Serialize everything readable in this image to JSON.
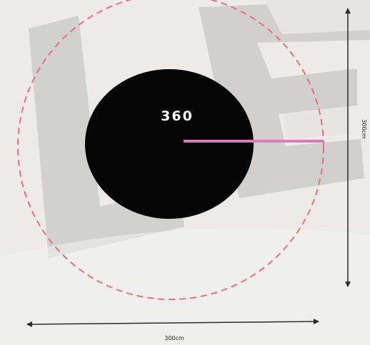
{
  "diagram": {
    "center_label": "360",
    "dimensions": {
      "width": "300cm",
      "height": "300cm"
    },
    "colors": {
      "background": "#ecebe8",
      "watermark": "#cdcccb",
      "circle_fill": "#050505",
      "dashed_circle": "#f06e74",
      "radius_line": "#d77fb4",
      "dimension_arrow": "#2b2b2b",
      "label_text": "#222222"
    }
  }
}
